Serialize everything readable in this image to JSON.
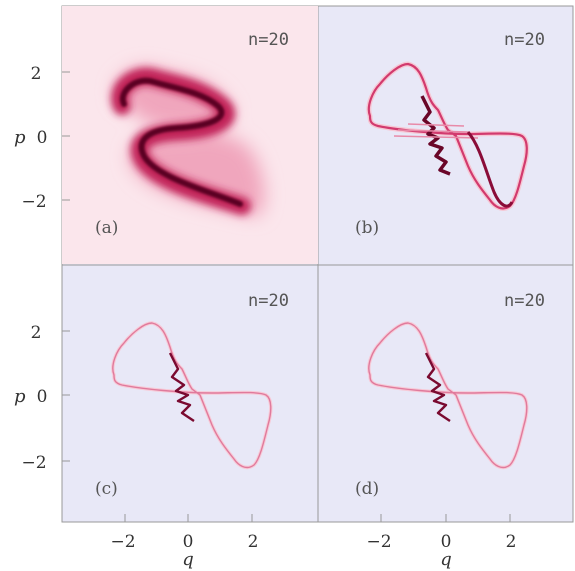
{
  "figure": {
    "colors": {
      "background": "#e8e8f7",
      "pale": "#fbe6ec",
      "light": "#f4b3c5",
      "mid": "#d23a6e",
      "dark": "#6a0628",
      "frame": "#999999"
    },
    "x_axis_name": "q",
    "y_axis_name": "p",
    "x_tick_labels": [
      "−2",
      "0",
      "2"
    ],
    "y_tick_labels": [
      "2",
      "0",
      "−2"
    ],
    "panels": [
      {
        "id": "a",
        "label": "(a)",
        "n_label": "n=20",
        "style": "diffuse"
      },
      {
        "id": "b",
        "label": "(b)",
        "n_label": "n=20",
        "style": "sharp"
      },
      {
        "id": "c",
        "label": "(c)",
        "n_label": "n=20",
        "style": "thin"
      },
      {
        "id": "d",
        "label": "(d)",
        "n_label": "n=20",
        "style": "thin"
      }
    ]
  }
}
